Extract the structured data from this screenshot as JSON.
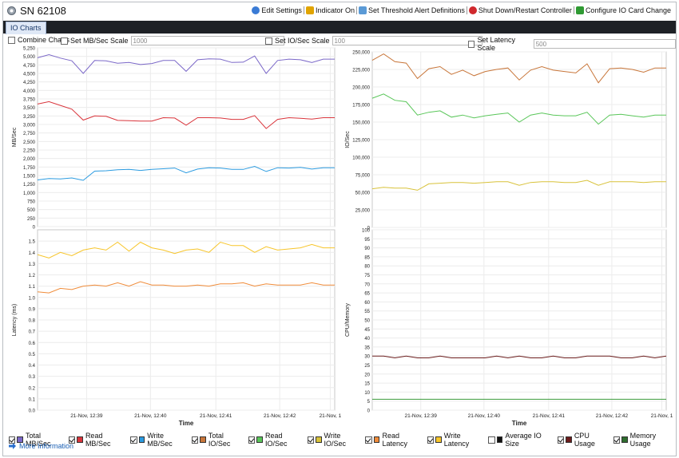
{
  "window": {
    "title": "SN 62108"
  },
  "toolbar": {
    "items": [
      {
        "label": "Edit Settings",
        "icon": "settings-icon",
        "color": "#3a7bd5"
      },
      {
        "label": "Indicator On",
        "icon": "indicator-icon",
        "color": "#e1a400"
      },
      {
        "label": "Set Threshold Alert Definitions",
        "icon": "threshold-icon",
        "color": "#5a9ad6"
      },
      {
        "label": "Shut Down/Restart Controller",
        "icon": "power-icon",
        "color": "#d0282d"
      },
      {
        "label": "Configure IO Card Change",
        "icon": "flag-icon",
        "color": "#2f9a33"
      }
    ]
  },
  "tabs": [
    {
      "label": "IO Charts"
    }
  ],
  "controls": {
    "combine_charts": {
      "label": "Combine Charts",
      "checked": false
    },
    "mb_scale": {
      "label": "Set MB/Sec Scale",
      "value": "1000",
      "checked": false
    },
    "io_scale": {
      "label": "Set IO/Sec Scale",
      "value": "100",
      "checked": false
    },
    "latency_scale": {
      "label": "Set Latency Scale",
      "value": "500",
      "checked": false
    }
  },
  "x_ticks": [
    "21-Nov, 12:39",
    "21-Nov, 12:40",
    "21-Nov, 12:41",
    "21-Nov, 12:42",
    "21-Nov, 1"
  ],
  "chart_data": [
    {
      "type": "line",
      "ylabel": "MB/Sec",
      "xlabel": "",
      "ylim": [
        0,
        5250
      ],
      "yticks": [
        "0",
        "250",
        "500",
        "750",
        "1,000",
        "1,250",
        "1,500",
        "1,750",
        "2,000",
        "2,250",
        "2,500",
        "2,750",
        "3,000",
        "3,250",
        "3,500",
        "3,750",
        "4,000",
        "4,250",
        "4,500",
        "4,750",
        "5,000",
        "5,250"
      ],
      "series": [
        {
          "name": "Total MB/Sec",
          "color": "#7b68c8",
          "values": [
            4960,
            5050,
            4950,
            4870,
            4500,
            4880,
            4870,
            4800,
            4820,
            4760,
            4790,
            4880,
            4880,
            4560,
            4900,
            4930,
            4920,
            4820,
            4830,
            5010,
            4500,
            4880,
            4920,
            4900,
            4820,
            4920,
            4920
          ]
        },
        {
          "name": "Read MB/Sec",
          "color": "#d9343b",
          "values": [
            3600,
            3670,
            3560,
            3450,
            3130,
            3250,
            3240,
            3120,
            3110,
            3100,
            3100,
            3200,
            3190,
            2980,
            3200,
            3200,
            3190,
            3150,
            3150,
            3260,
            2880,
            3150,
            3200,
            3180,
            3160,
            3200,
            3200
          ]
        },
        {
          "name": "Write MB/Sec",
          "color": "#2b9be0",
          "values": [
            1370,
            1410,
            1400,
            1430,
            1360,
            1630,
            1640,
            1670,
            1680,
            1650,
            1680,
            1700,
            1720,
            1580,
            1690,
            1730,
            1720,
            1680,
            1680,
            1770,
            1620,
            1730,
            1720,
            1740,
            1690,
            1730,
            1730
          ]
        }
      ]
    },
    {
      "type": "line",
      "ylabel": "IO/Sec",
      "xlabel": "",
      "ylim": [
        0,
        250000
      ],
      "yticks": [
        "0",
        "25,000",
        "50,000",
        "75,000",
        "100,000",
        "125,000",
        "150,000",
        "175,000",
        "200,000",
        "225,000",
        "250,000"
      ],
      "series": [
        {
          "name": "Total IO/Sec",
          "color": "#c8763a",
          "values": [
            238000,
            247000,
            236000,
            234000,
            212000,
            226000,
            229000,
            218000,
            224000,
            216000,
            222000,
            225000,
            227000,
            210000,
            224000,
            229000,
            224000,
            222000,
            220000,
            233000,
            206000,
            226000,
            227000,
            225000,
            221000,
            227000,
            227000
          ]
        },
        {
          "name": "Read IO/Sec",
          "color": "#59c659",
          "values": [
            184000,
            190000,
            181000,
            179000,
            160000,
            164000,
            166000,
            157000,
            160000,
            156000,
            159000,
            161000,
            163000,
            150000,
            160000,
            163000,
            160000,
            159000,
            159000,
            164000,
            147000,
            160000,
            161000,
            159000,
            157000,
            160000,
            160000
          ]
        },
        {
          "name": "Write IO/Sec",
          "color": "#d8c23a",
          "values": [
            55000,
            57000,
            56000,
            56000,
            53000,
            62000,
            63000,
            64000,
            64000,
            63000,
            64000,
            65000,
            65000,
            60000,
            64000,
            65000,
            65000,
            64000,
            64000,
            67000,
            60000,
            65000,
            65000,
            65000,
            64000,
            65000,
            65000
          ]
        }
      ]
    },
    {
      "type": "line",
      "ylabel": "Latency (ms)",
      "xlabel": "Time",
      "ylim": [
        0,
        1.6
      ],
      "yticks": [
        "0.0",
        "0.1",
        "0.2",
        "0.3",
        "0.4",
        "0.5",
        "0.6",
        "0.7",
        "0.8",
        "0.9",
        "1.0",
        "1.1",
        "1.2",
        "1.3",
        "1.4",
        "1.5"
      ],
      "series": [
        {
          "name": "Read Latency",
          "color": "#f08c3a",
          "values": [
            1.05,
            1.04,
            1.08,
            1.07,
            1.1,
            1.11,
            1.1,
            1.13,
            1.1,
            1.14,
            1.11,
            1.11,
            1.1,
            1.1,
            1.11,
            1.1,
            1.12,
            1.12,
            1.13,
            1.1,
            1.12,
            1.11,
            1.11,
            1.11,
            1.13,
            1.11,
            1.11
          ]
        },
        {
          "name": "Write Latency",
          "color": "#f7c52a",
          "values": [
            1.38,
            1.35,
            1.4,
            1.37,
            1.42,
            1.44,
            1.42,
            1.49,
            1.41,
            1.49,
            1.44,
            1.42,
            1.39,
            1.42,
            1.43,
            1.4,
            1.49,
            1.46,
            1.46,
            1.4,
            1.45,
            1.42,
            1.43,
            1.44,
            1.47,
            1.44,
            1.44
          ]
        }
      ]
    },
    {
      "type": "line",
      "ylabel": "CPU/Memory",
      "xlabel": "Time",
      "ylim": [
        0,
        100
      ],
      "yticks": [
        "0",
        "5",
        "10",
        "15",
        "20",
        "25",
        "30",
        "35",
        "40",
        "45",
        "50",
        "55",
        "60",
        "65",
        "70",
        "75",
        "80",
        "85",
        "90",
        "95",
        "100"
      ],
      "series": [
        {
          "name": "CPU Usage",
          "color": "#6b1c1c",
          "values": [
            30,
            30,
            29,
            30,
            29,
            29,
            30,
            29,
            29,
            29,
            29,
            30,
            29,
            30,
            29,
            29,
            30,
            29,
            29,
            30,
            30,
            30,
            29,
            29,
            30,
            29,
            30
          ]
        },
        {
          "name": "Memory Usage",
          "color": "#3a9a3a",
          "values": [
            6,
            6,
            6,
            6,
            6,
            6,
            6,
            6,
            6,
            6,
            6,
            6,
            6,
            6,
            6,
            6,
            6,
            6,
            6,
            6,
            6,
            6,
            6,
            6,
            6,
            6,
            6
          ]
        }
      ]
    }
  ],
  "legend": [
    {
      "label": "Total MB/Sec",
      "color": "#7b68c8",
      "checked": true
    },
    {
      "label": "Read MB/Sec",
      "color": "#d9343b",
      "checked": true
    },
    {
      "label": "Write MB/Sec",
      "color": "#2b9be0",
      "checked": true
    },
    {
      "label": "Total IO/Sec",
      "color": "#c8763a",
      "checked": true
    },
    {
      "label": "Read IO/Sec",
      "color": "#59c659",
      "checked": true
    },
    {
      "label": "Write IO/Sec",
      "color": "#d8c23a",
      "checked": true
    },
    {
      "label": "Read Latency",
      "color": "#f08c3a",
      "checked": true
    },
    {
      "label": "Write Latency",
      "color": "#f7c52a",
      "checked": true
    },
    {
      "label": "Average IO Size",
      "color": "#111111",
      "checked": false
    },
    {
      "label": "CPU Usage",
      "color": "#6b1c1c",
      "checked": true
    },
    {
      "label": "Memory Usage",
      "color": "#2f6e2f",
      "checked": true
    }
  ],
  "more_info": {
    "label": "More Information"
  }
}
